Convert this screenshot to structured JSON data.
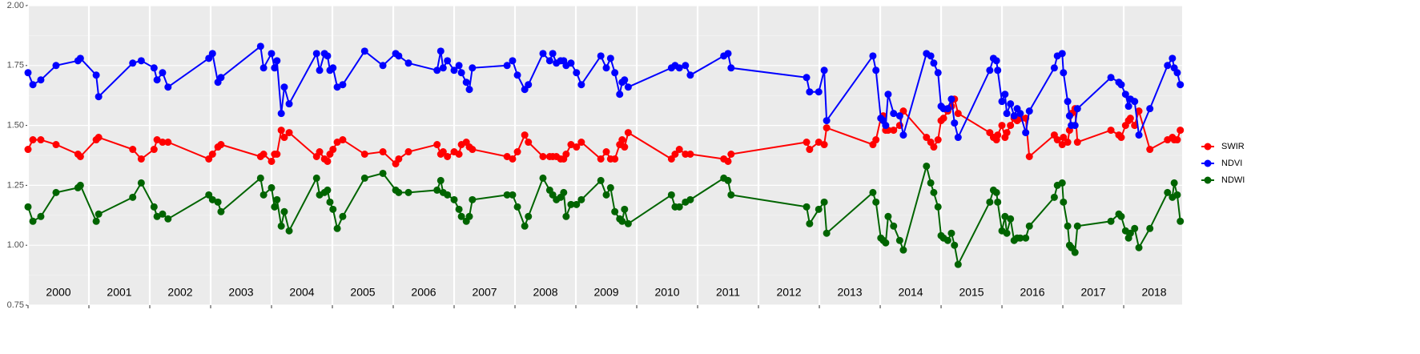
{
  "chart_data": {
    "type": "line",
    "x": [
      2000.0,
      2000.08,
      2000.21,
      2000.46,
      2000.82,
      2000.86,
      2001.12,
      2001.16,
      2001.72,
      2001.86,
      2002.07,
      2002.12,
      2002.21,
      2002.3,
      2002.97,
      2003.03,
      2003.12,
      2003.17,
      2003.82,
      2003.87,
      2004.0,
      2004.05,
      2004.09,
      2004.16,
      2004.21,
      2004.29,
      2004.74,
      2004.79,
      2004.87,
      2004.92,
      2004.96,
      2005.01,
      2005.08,
      2005.17,
      2005.53,
      2005.83,
      2006.04,
      2006.09,
      2006.25,
      2006.72,
      2006.78,
      2006.82,
      2006.89,
      2007.0,
      2007.08,
      2007.12,
      2007.2,
      2007.25,
      2007.3,
      2007.87,
      2007.96,
      2008.04,
      2008.16,
      2008.22,
      2008.46,
      2008.57,
      2008.62,
      2008.68,
      2008.75,
      2008.8,
      2008.84,
      2008.92,
      2009.01,
      2009.09,
      2009.41,
      2009.5,
      2009.57,
      2009.64,
      2009.72,
      2009.76,
      2009.8,
      2009.86,
      2010.57,
      2010.63,
      2010.7,
      2010.8,
      2010.88,
      2011.43,
      2011.5,
      2011.55,
      2012.79,
      2012.84,
      2012.99,
      2013.08,
      2013.12,
      2013.88,
      2013.93,
      2014.01,
      2014.05,
      2014.09,
      2014.13,
      2014.22,
      2014.32,
      2014.38,
      2014.76,
      2014.83,
      2014.88,
      2014.95,
      2015.0,
      2015.04,
      2015.11,
      2015.17,
      2015.22,
      2015.28,
      2015.8,
      2015.86,
      2015.91,
      2015.93,
      2016.0,
      2016.05,
      2016.08,
      2016.14,
      2016.2,
      2016.25,
      2016.3,
      2016.39,
      2016.45,
      2016.86,
      2016.91,
      2016.99,
      2017.01,
      2017.08,
      2017.11,
      2017.14,
      2017.2,
      2017.24,
      2017.79,
      2017.92,
      2017.96,
      2018.03,
      2018.08,
      2018.11,
      2018.18,
      2018.25,
      2018.43,
      2018.72,
      2018.8,
      2018.83,
      2018.88,
      2018.93
    ],
    "series": [
      {
        "name": "SWIR",
        "color": "#ff0000",
        "values": [
          1.4,
          1.44,
          1.44,
          1.42,
          1.38,
          1.37,
          1.44,
          1.45,
          1.4,
          1.36,
          1.4,
          1.44,
          1.43,
          1.43,
          1.36,
          1.38,
          1.41,
          1.42,
          1.37,
          1.38,
          1.35,
          1.38,
          1.38,
          1.48,
          1.45,
          1.47,
          1.37,
          1.39,
          1.36,
          1.35,
          1.38,
          1.4,
          1.43,
          1.44,
          1.38,
          1.39,
          1.34,
          1.36,
          1.39,
          1.42,
          1.38,
          1.39,
          1.37,
          1.39,
          1.38,
          1.42,
          1.43,
          1.41,
          1.4,
          1.37,
          1.36,
          1.39,
          1.46,
          1.43,
          1.37,
          1.37,
          1.37,
          1.37,
          1.36,
          1.36,
          1.38,
          1.42,
          1.41,
          1.43,
          1.36,
          1.39,
          1.36,
          1.36,
          1.42,
          1.44,
          1.41,
          1.47,
          1.36,
          1.38,
          1.4,
          1.38,
          1.38,
          1.36,
          1.35,
          1.38,
          1.43,
          1.4,
          1.43,
          1.42,
          1.49,
          1.42,
          1.44,
          1.53,
          1.54,
          1.48,
          1.48,
          1.48,
          1.5,
          1.56,
          1.45,
          1.43,
          1.41,
          1.44,
          1.52,
          1.53,
          1.56,
          1.58,
          1.61,
          1.55,
          1.47,
          1.45,
          1.44,
          1.46,
          1.5,
          1.45,
          1.47,
          1.5,
          1.53,
          1.52,
          1.53,
          1.53,
          1.37,
          1.46,
          1.44,
          1.42,
          1.45,
          1.43,
          1.48,
          1.55,
          1.57,
          1.43,
          1.48,
          1.46,
          1.45,
          1.5,
          1.52,
          1.53,
          1.5,
          1.56,
          1.4,
          1.44,
          1.45,
          1.44,
          1.44,
          1.48
        ]
      },
      {
        "name": "NDVI",
        "color": "#0000ff",
        "values": [
          1.72,
          1.67,
          1.69,
          1.75,
          1.77,
          1.78,
          1.71,
          1.62,
          1.76,
          1.77,
          1.74,
          1.69,
          1.72,
          1.66,
          1.78,
          1.8,
          1.68,
          1.7,
          1.83,
          1.74,
          1.8,
          1.74,
          1.77,
          1.55,
          1.66,
          1.59,
          1.8,
          1.73,
          1.8,
          1.79,
          1.73,
          1.74,
          1.66,
          1.67,
          1.81,
          1.75,
          1.8,
          1.79,
          1.76,
          1.73,
          1.81,
          1.74,
          1.77,
          1.73,
          1.75,
          1.72,
          1.68,
          1.65,
          1.74,
          1.75,
          1.77,
          1.71,
          1.65,
          1.67,
          1.8,
          1.77,
          1.8,
          1.76,
          1.77,
          1.77,
          1.75,
          1.76,
          1.72,
          1.67,
          1.79,
          1.74,
          1.78,
          1.72,
          1.63,
          1.68,
          1.69,
          1.66,
          1.74,
          1.75,
          1.74,
          1.75,
          1.71,
          1.79,
          1.8,
          1.74,
          1.7,
          1.64,
          1.64,
          1.73,
          1.52,
          1.79,
          1.73,
          1.53,
          1.52,
          1.5,
          1.63,
          1.55,
          1.54,
          1.46,
          1.8,
          1.79,
          1.76,
          1.72,
          1.58,
          1.57,
          1.57,
          1.61,
          1.51,
          1.45,
          1.73,
          1.78,
          1.77,
          1.73,
          1.6,
          1.63,
          1.55,
          1.59,
          1.54,
          1.57,
          1.55,
          1.47,
          1.56,
          1.74,
          1.79,
          1.8,
          1.72,
          1.6,
          1.54,
          1.5,
          1.5,
          1.57,
          1.7,
          1.68,
          1.67,
          1.63,
          1.58,
          1.61,
          1.6,
          1.46,
          1.57,
          1.75,
          1.78,
          1.74,
          1.72,
          1.67
        ]
      },
      {
        "name": "NDWI",
        "color": "#006400",
        "values": [
          1.16,
          1.1,
          1.12,
          1.22,
          1.24,
          1.25,
          1.1,
          1.13,
          1.2,
          1.26,
          1.16,
          1.12,
          1.13,
          1.11,
          1.21,
          1.19,
          1.18,
          1.14,
          1.28,
          1.21,
          1.24,
          1.16,
          1.19,
          1.08,
          1.14,
          1.06,
          1.28,
          1.21,
          1.22,
          1.23,
          1.18,
          1.15,
          1.07,
          1.12,
          1.28,
          1.3,
          1.23,
          1.22,
          1.22,
          1.23,
          1.27,
          1.22,
          1.21,
          1.19,
          1.15,
          1.12,
          1.1,
          1.12,
          1.19,
          1.21,
          1.21,
          1.16,
          1.08,
          1.12,
          1.28,
          1.23,
          1.21,
          1.19,
          1.2,
          1.22,
          1.12,
          1.17,
          1.17,
          1.19,
          1.27,
          1.21,
          1.24,
          1.14,
          1.11,
          1.1,
          1.15,
          1.09,
          1.21,
          1.16,
          1.16,
          1.18,
          1.19,
          1.28,
          1.27,
          1.21,
          1.16,
          1.09,
          1.15,
          1.18,
          1.05,
          1.22,
          1.18,
          1.03,
          1.02,
          1.01,
          1.12,
          1.08,
          1.02,
          0.98,
          1.33,
          1.26,
          1.22,
          1.16,
          1.04,
          1.03,
          1.02,
          1.05,
          1.0,
          0.92,
          1.18,
          1.23,
          1.22,
          1.18,
          1.06,
          1.12,
          1.05,
          1.11,
          1.02,
          1.03,
          1.03,
          1.03,
          1.08,
          1.2,
          1.25,
          1.26,
          1.18,
          1.08,
          1.0,
          0.99,
          0.97,
          1.08,
          1.1,
          1.13,
          1.12,
          1.06,
          1.03,
          1.05,
          1.07,
          0.99,
          1.07,
          1.22,
          1.2,
          1.26,
          1.21,
          1.1
        ]
      }
    ],
    "xlim": [
      2000,
      2018.96
    ],
    "xticks": [
      2000,
      2001,
      2002,
      2003,
      2004,
      2005,
      2006,
      2007,
      2008,
      2009,
      2010,
      2011,
      2012,
      2013,
      2014,
      2015,
      2016,
      2017,
      2018
    ],
    "year_labels": [
      {
        "value": 2000.5,
        "label": "2000"
      },
      {
        "value": 2001.5,
        "label": "2001"
      },
      {
        "value": 2002.5,
        "label": "2002"
      },
      {
        "value": 2003.5,
        "label": "2003"
      },
      {
        "value": 2004.5,
        "label": "2004"
      },
      {
        "value": 2005.5,
        "label": "2005"
      },
      {
        "value": 2006.5,
        "label": "2006"
      },
      {
        "value": 2007.5,
        "label": "2007"
      },
      {
        "value": 2008.5,
        "label": "2008"
      },
      {
        "value": 2009.5,
        "label": "2009"
      },
      {
        "value": 2010.5,
        "label": "2010"
      },
      {
        "value": 2011.5,
        "label": "2011"
      },
      {
        "value": 2012.5,
        "label": "2012"
      },
      {
        "value": 2013.5,
        "label": "2013"
      },
      {
        "value": 2014.5,
        "label": "2014"
      },
      {
        "value": 2015.5,
        "label": "2015"
      },
      {
        "value": 2016.5,
        "label": "2016"
      },
      {
        "value": 2017.5,
        "label": "2017"
      },
      {
        "value": 2018.5,
        "label": "2018"
      }
    ],
    "ylim": [
      0.75,
      2.0
    ],
    "yticks": [
      0.75,
      {
        "value": 1.0,
        "label": "1.00"
      },
      1.25,
      {
        "value": 1.5,
        "label": "1.50"
      },
      1.75,
      {
        "value": 2.0,
        "label": "2.00"
      }
    ],
    "grid": true,
    "legend": "right"
  }
}
